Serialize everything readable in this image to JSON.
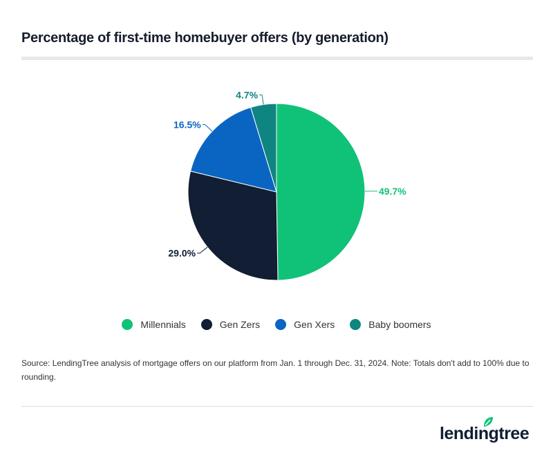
{
  "title": "Percentage of first-time homebuyer offers (by generation)",
  "chart_data": {
    "type": "pie",
    "title": "Percentage of first-time homebuyer offers (by generation)",
    "categories": [
      "Millennials",
      "Gen Zers",
      "Gen Xers",
      "Baby boomers"
    ],
    "values": [
      49.7,
      29.0,
      16.5,
      4.7
    ],
    "labels": [
      "49.7%",
      "29.0%",
      "16.5%",
      "4.7%"
    ],
    "colors": [
      "#10c277",
      "#111e33",
      "#0a65c2",
      "#0e8580"
    ],
    "label_colors": [
      "#10c277",
      "#111e33",
      "#0a65c2",
      "#0e8580"
    ],
    "legend_position": "bottom",
    "start": "top, clockwise"
  },
  "legend": [
    "Millennials",
    "Gen Zers",
    "Gen Xers",
    "Baby boomers"
  ],
  "source": "Source: LendingTree analysis of mortgage offers on our platform from Jan. 1 through Dec. 31, 2024. Note: Totals don't add to 100% due to rounding.",
  "logo": {
    "text": "lendingtree",
    "color": "#111e33",
    "leaf_color": "#10c277"
  }
}
